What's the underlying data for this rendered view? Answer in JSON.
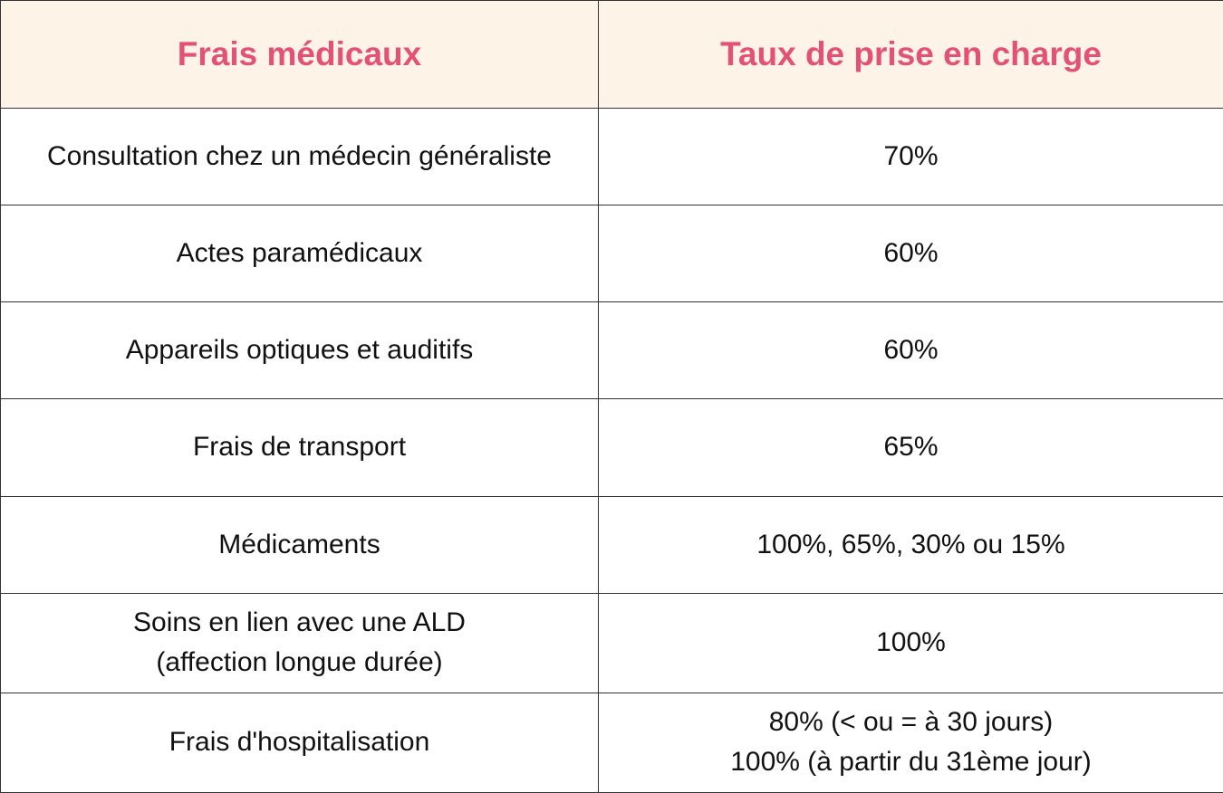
{
  "headers": {
    "col1": "Frais médicaux",
    "col2": "Taux de prise en charge"
  },
  "rows": [
    {
      "expense": [
        "Consultation chez un médecin généraliste"
      ],
      "rate": [
        "70%"
      ]
    },
    {
      "expense": [
        "Actes paramédicaux"
      ],
      "rate": [
        "60%"
      ]
    },
    {
      "expense": [
        "Appareils optiques et auditifs"
      ],
      "rate": [
        "60%"
      ]
    },
    {
      "expense": [
        "Frais de transport"
      ],
      "rate": [
        "65%"
      ]
    },
    {
      "expense": [
        "Médicaments"
      ],
      "rate": [
        "100%, 65%, 30% ou 15%"
      ]
    },
    {
      "expense": [
        "Soins en lien avec une ALD",
        "(affection longue durée)"
      ],
      "rate": [
        "100%"
      ]
    },
    {
      "expense": [
        "Frais d'hospitalisation"
      ],
      "rate": [
        "80% (< ou = à 30 jours)",
        "100% (à partir du 31ème jour)"
      ]
    }
  ],
  "colors": {
    "header_text": "#e35274",
    "header_background": "#fdf3e6",
    "border": "#333333"
  }
}
